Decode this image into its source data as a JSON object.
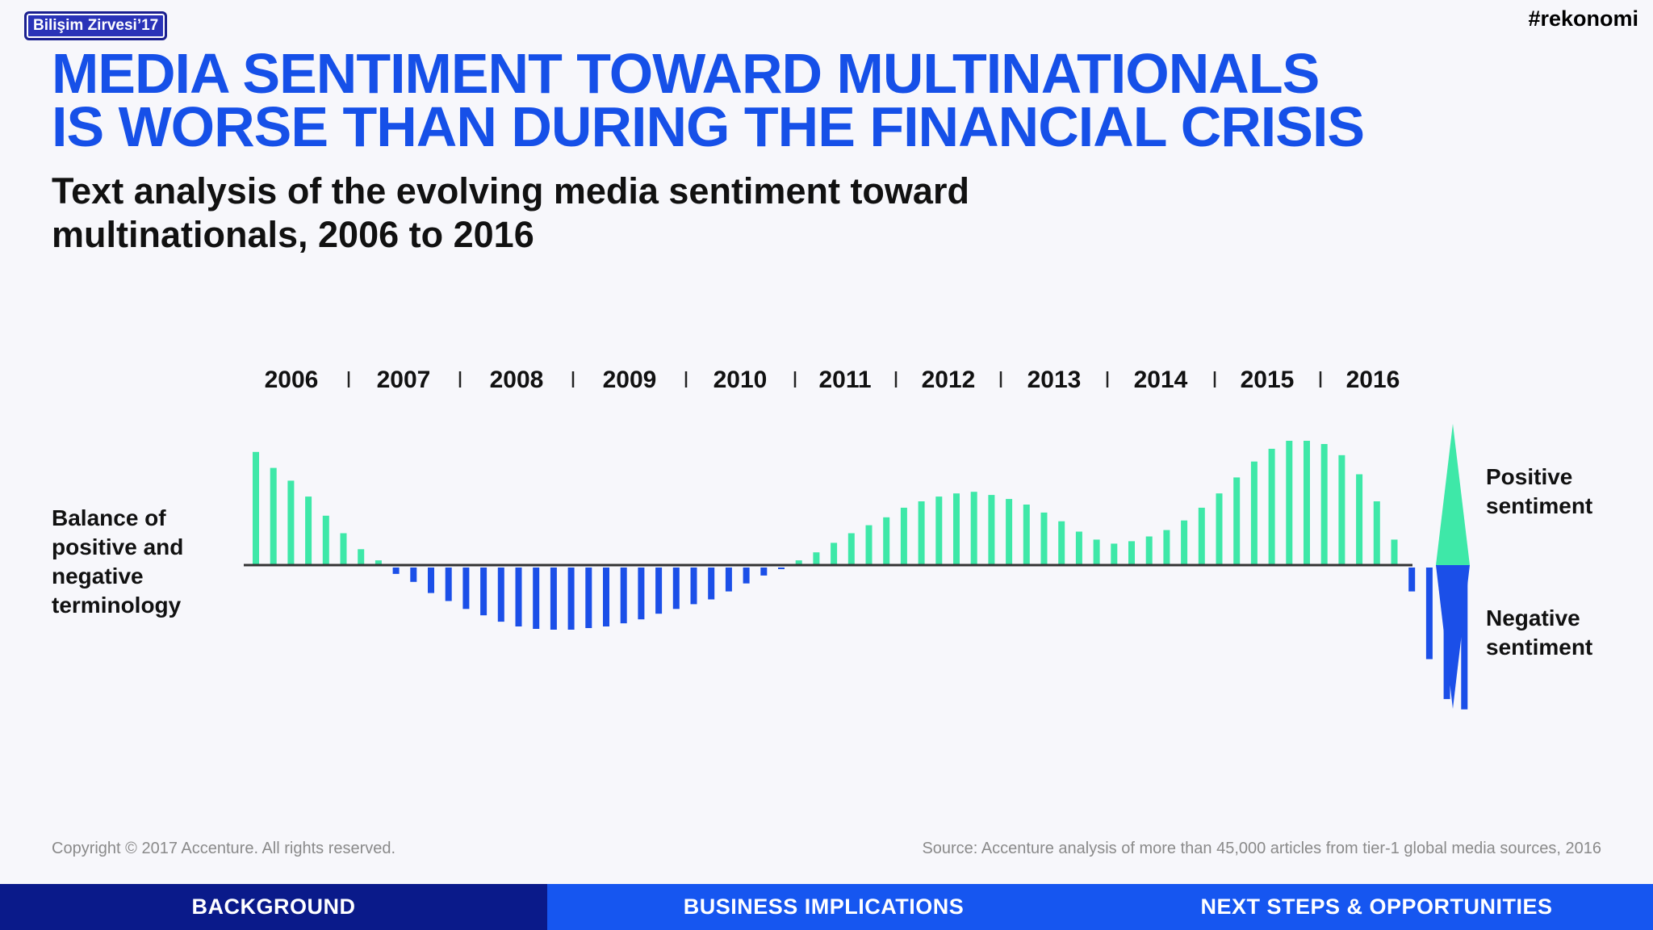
{
  "header": {
    "badge": "Bilişim Zirvesi’17",
    "hashtag": "#rekonomi",
    "title_line1": "MEDIA SENTIMENT TOWARD MULTINATIONALS",
    "title_line2": "IS WORSE THAN DURING THE FINANCIAL CRISIS",
    "subtitle_line1": "Text analysis of the evolving media sentiment toward",
    "subtitle_line2": "multinationals, 2006 to 2016"
  },
  "chart_data": {
    "type": "bar",
    "title": "Text analysis of the evolving media sentiment toward multinationals, 2006 to 2016",
    "ylabel": "Balance of positive and negative terminology",
    "year_labels": [
      "2006",
      "2007",
      "2008",
      "2009",
      "2010",
      "2011",
      "2012",
      "2013",
      "2014",
      "2015",
      "2016"
    ],
    "ylim": [
      -180,
      160
    ],
    "positive_color": "#3ee8a8",
    "negative_color": "#1b4fe8",
    "values": [
      142,
      122,
      106,
      86,
      62,
      40,
      20,
      6,
      -8,
      -18,
      -32,
      -42,
      -52,
      -60,
      -68,
      -74,
      -77,
      -78,
      -78,
      -76,
      -74,
      -70,
      -65,
      -58,
      -52,
      -46,
      -40,
      -30,
      -20,
      -10,
      -2,
      6,
      16,
      28,
      40,
      50,
      60,
      72,
      80,
      86,
      90,
      92,
      88,
      83,
      76,
      66,
      55,
      42,
      32,
      27,
      30,
      36,
      44,
      56,
      72,
      90,
      110,
      130,
      146,
      156,
      156,
      152,
      138,
      114,
      80,
      32,
      -30,
      -115,
      -165,
      -178
    ],
    "legend_positive": "Positive sentiment",
    "legend_negative": "Negative sentiment"
  },
  "footer": {
    "copyright": "Copyright © 2017 Accenture. All rights reserved.",
    "source": "Source: Accenture analysis of more than 45,000 articles from tier-1 global media sources, 2016"
  },
  "nav": {
    "background": "BACKGROUND",
    "business": "BUSINESS IMPLICATIONS",
    "next_steps": "NEXT STEPS & OPPORTUNITIES"
  }
}
